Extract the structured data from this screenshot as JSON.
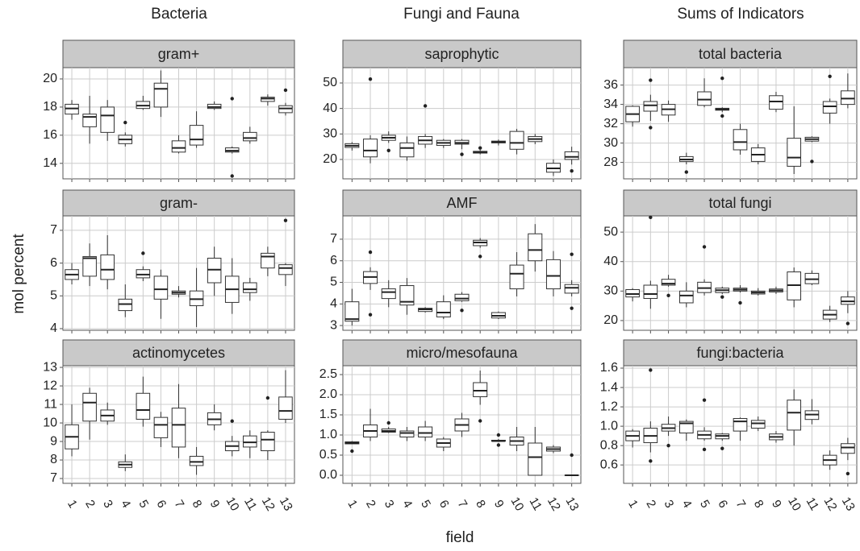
{
  "column_titles": [
    "Bacteria",
    "Fungi and Fauna",
    "Sums of Indicators"
  ],
  "ylabel": "mol percent",
  "xlabel": "field",
  "categories": [
    "1",
    "2",
    "3",
    "4",
    "5",
    "6",
    "7",
    "8",
    "9",
    "10",
    "11",
    "12",
    "13"
  ],
  "chart_data": [
    {
      "type": "box",
      "title": "gram+",
      "ylim": [
        12.9,
        20.8
      ],
      "yticks": [
        14,
        16,
        18,
        20
      ],
      "boxes": [
        [
          17.1,
          17.5,
          17.9,
          18.2,
          18.5
        ],
        [
          15.4,
          16.6,
          17.3,
          17.5,
          18.8
        ],
        [
          15.6,
          16.2,
          17.4,
          18.0,
          18.5
        ],
        [
          15.2,
          15.4,
          15.7,
          16.0,
          16.2
        ],
        [
          17.8,
          17.9,
          18.1,
          18.4,
          18.8
        ],
        [
          17.3,
          18.0,
          19.3,
          19.7,
          20.6
        ],
        [
          14.7,
          14.8,
          15.1,
          15.6,
          16.0
        ],
        [
          15.1,
          15.3,
          15.7,
          16.7,
          17.7
        ],
        [
          17.8,
          17.9,
          18.0,
          18.2,
          18.4
        ],
        [
          14.7,
          14.8,
          14.9,
          15.1,
          15.2
        ],
        [
          15.4,
          15.6,
          15.8,
          16.2,
          16.6
        ],
        [
          18.1,
          18.4,
          18.6,
          18.7,
          18.9
        ],
        [
          17.4,
          17.6,
          17.9,
          18.1,
          18.3
        ]
      ],
      "outliers": [
        [],
        [],
        [],
        [
          16.9
        ],
        [],
        [],
        [],
        [],
        [],
        [
          18.6,
          13.1
        ],
        [],
        [],
        [
          19.2
        ]
      ]
    },
    {
      "type": "box",
      "title": "saprophytic",
      "ylim": [
        12.4,
        56
      ],
      "yticks": [
        20,
        30,
        40,
        50
      ],
      "boxes": [
        [
          23.5,
          24.7,
          25.4,
          26.2,
          26.8
        ],
        [
          18.5,
          21,
          23.5,
          28,
          29.5
        ],
        [
          26.5,
          27.5,
          28.5,
          29.5,
          31
        ],
        [
          19.5,
          21,
          24.5,
          26.5,
          29
        ],
        [
          24.5,
          26,
          27.5,
          29,
          30
        ],
        [
          24.5,
          25.5,
          26.5,
          27.5,
          28
        ],
        [
          24,
          26,
          26.5,
          27.5,
          28
        ],
        [
          22,
          22.5,
          22.8,
          23.2,
          23.8
        ],
        [
          25.5,
          26.5,
          26.8,
          27.2,
          27.8
        ],
        [
          22,
          24,
          26.5,
          31,
          32
        ],
        [
          26,
          27,
          28,
          29,
          30
        ],
        [
          13.5,
          15,
          16.5,
          18.5,
          20
        ],
        [
          18,
          20,
          21,
          23,
          25
        ]
      ],
      "outliers": [
        [],
        [
          51.5
        ],
        [
          23.5
        ],
        [],
        [
          41
        ],
        [],
        [
          22
        ],
        [
          24.5
        ],
        [],
        [],
        [],
        [],
        [
          15.5
        ]
      ]
    },
    {
      "type": "box",
      "title": "total bacteria",
      "ylim": [
        26.3,
        37.8
      ],
      "yticks": [
        28,
        30,
        32,
        34,
        36
      ],
      "boxes": [
        [
          31.7,
          32.2,
          33.0,
          33.8,
          33.9
        ],
        [
          32.3,
          33.3,
          33.9,
          34.3,
          35.0
        ],
        [
          32.2,
          32.9,
          33.5,
          34.0,
          34.4
        ],
        [
          27.8,
          28.1,
          28.3,
          28.6,
          29.0
        ],
        [
          33.7,
          33.9,
          34.5,
          35.3,
          36.7
        ],
        [
          33.2,
          33.4,
          33.5,
          33.6,
          33.7
        ],
        [
          28.8,
          29.3,
          30.1,
          31.4,
          32.0
        ],
        [
          27.8,
          28.1,
          28.8,
          29.5,
          29.9
        ],
        [
          33.2,
          33.5,
          34.3,
          34.9,
          35.3
        ],
        [
          26.8,
          27.6,
          28.5,
          30.5,
          33.8
        ],
        [
          30.1,
          30.2,
          30.4,
          30.6,
          30.7
        ],
        [
          32.0,
          33.1,
          33.8,
          34.3,
          34.6
        ],
        [
          33.6,
          34.0,
          34.6,
          35.4,
          37.2
        ]
      ],
      "outliers": [
        [],
        [
          36.5,
          31.6
        ],
        [],
        [
          27.0
        ],
        [],
        [
          36.7,
          32.8
        ],
        [],
        [],
        [],
        [],
        [
          28.1
        ],
        [
          36.9
        ],
        []
      ]
    },
    {
      "type": "box",
      "title": "gram-",
      "ylim": [
        3.95,
        7.44
      ],
      "yticks": [
        4,
        5,
        6,
        7
      ],
      "boxes": [
        [
          5.35,
          5.5,
          5.65,
          5.8,
          6.0
        ],
        [
          5.3,
          5.6,
          6.15,
          6.2,
          6.6
        ],
        [
          5.2,
          5.5,
          5.8,
          6.25,
          6.85
        ],
        [
          4.35,
          4.55,
          4.75,
          4.9,
          5.35
        ],
        [
          5.45,
          5.55,
          5.65,
          5.8,
          5.9
        ],
        [
          4.3,
          4.9,
          5.2,
          5.6,
          5.8
        ],
        [
          4.95,
          5.05,
          5.1,
          5.15,
          5.3
        ],
        [
          4.05,
          4.7,
          4.9,
          5.15,
          5.85
        ],
        [
          5.0,
          5.4,
          5.8,
          6.15,
          6.5
        ],
        [
          4.45,
          4.8,
          5.2,
          5.6,
          6.15
        ],
        [
          4.85,
          5.1,
          5.2,
          5.4,
          5.55
        ],
        [
          5.6,
          5.85,
          6.2,
          6.3,
          6.5
        ],
        [
          5.3,
          5.65,
          5.85,
          5.95,
          6.0
        ]
      ],
      "outliers": [
        [],
        [],
        [],
        [],
        [
          6.3
        ],
        [],
        [],
        [],
        [],
        [],
        [],
        [],
        [
          7.3
        ]
      ]
    },
    {
      "type": "box",
      "title": "AMF",
      "ylim": [
        2.78,
        8.08
      ],
      "yticks": [
        3,
        4,
        5,
        6,
        7
      ],
      "boxes": [
        [
          3.0,
          3.2,
          3.3,
          4.1,
          4.7
        ],
        [
          4.65,
          4.95,
          5.25,
          5.5,
          5.7
        ],
        [
          3.85,
          4.25,
          4.55,
          4.7,
          5.1
        ],
        [
          3.5,
          3.95,
          4.1,
          4.85,
          5.2
        ],
        [
          3.6,
          3.65,
          3.75,
          3.8,
          3.85
        ],
        [
          3.3,
          3.4,
          3.6,
          4.1,
          4.4
        ],
        [
          4.1,
          4.15,
          4.25,
          4.45,
          4.55
        ],
        [
          6.6,
          6.7,
          6.85,
          6.95,
          7.05
        ],
        [
          3.3,
          3.35,
          3.45,
          3.6,
          3.65
        ],
        [
          4.35,
          4.7,
          5.4,
          5.8,
          6.4
        ],
        [
          5.5,
          6.0,
          6.5,
          7.25,
          7.7
        ],
        [
          4.35,
          4.7,
          5.3,
          6.05,
          6.45
        ],
        [
          4.35,
          4.5,
          4.75,
          4.9,
          5.1
        ]
      ],
      "outliers": [
        [],
        [
          6.4,
          3.5
        ],
        [],
        [],
        [],
        [],
        [
          3.7
        ],
        [
          6.2
        ],
        [],
        [],
        [],
        [],
        [
          6.3,
          3.8
        ]
      ]
    },
    {
      "type": "box",
      "title": "total fungi",
      "ylim": [
        16.7,
        55.5
      ],
      "yticks": [
        20,
        30,
        40,
        50
      ],
      "boxes": [
        [
          26.5,
          28,
          29,
          30.5,
          31
        ],
        [
          24,
          27.5,
          29,
          32,
          33.5
        ],
        [
          31.5,
          32,
          32.5,
          34,
          35.5
        ],
        [
          24.5,
          26,
          28.5,
          30,
          33
        ],
        [
          28.5,
          29.5,
          31,
          33,
          34
        ],
        [
          29,
          29.5,
          30.3,
          31,
          31.5
        ],
        [
          29.5,
          30,
          30.5,
          31,
          32
        ],
        [
          28.5,
          29,
          29.5,
          30,
          31
        ],
        [
          29,
          29.7,
          30.2,
          30.7,
          31.5
        ],
        [
          24.5,
          27,
          32,
          36.5,
          38
        ],
        [
          32,
          32.5,
          34,
          36,
          37
        ],
        [
          19.5,
          20.5,
          22,
          23.5,
          25
        ],
        [
          22.5,
          25.5,
          26.5,
          28,
          30
        ]
      ],
      "outliers": [
        [],
        [
          55
        ],
        [
          28.5
        ],
        [],
        [
          45
        ],
        [
          28
        ],
        [
          26
        ],
        [],
        [],
        [],
        [],
        [],
        [
          19
        ]
      ]
    },
    {
      "type": "box",
      "title": "actinomycetes",
      "ylim": [
        6.74,
        13.09
      ],
      "yticks": [
        7,
        8,
        9,
        10,
        11,
        12,
        13
      ],
      "boxes": [
        [
          8.2,
          8.6,
          9.25,
          9.9,
          11.0
        ],
        [
          9.1,
          10.1,
          11.1,
          11.6,
          11.9
        ],
        [
          9.9,
          10.1,
          10.4,
          10.7,
          11.1
        ],
        [
          7.4,
          7.6,
          7.75,
          7.9,
          8.3
        ],
        [
          9.8,
          10.2,
          10.7,
          11.6,
          12.5
        ],
        [
          8.7,
          9.2,
          9.9,
          10.3,
          10.6
        ],
        [
          8.1,
          8.7,
          9.9,
          10.8,
          12.1
        ],
        [
          7.2,
          7.7,
          7.9,
          8.2,
          8.7
        ],
        [
          9.6,
          9.9,
          10.2,
          10.55,
          11.0
        ],
        [
          8.2,
          8.5,
          8.75,
          9.0,
          9.3
        ],
        [
          8.1,
          8.7,
          8.95,
          9.3,
          9.6
        ],
        [
          8.0,
          8.5,
          9.1,
          9.5,
          9.6
        ],
        [
          10.0,
          10.2,
          10.65,
          11.4,
          12.85
        ]
      ],
      "outliers": [
        [],
        [],
        [],
        [],
        [],
        [],
        [],
        [],
        [],
        [
          10.1
        ],
        [],
        [
          11.35
        ],
        []
      ]
    },
    {
      "type": "box",
      "title": "micro/mesofauna",
      "ylim": [
        -0.2,
        2.72
      ],
      "yticks": [
        {
          "value": 0,
          "label": "0.0"
        },
        {
          "value": 0.5,
          "label": "0.5"
        },
        {
          "value": 1,
          "label": "1.0"
        },
        {
          "value": 1.5,
          "label": "1.5"
        },
        {
          "value": 2,
          "label": "2.0"
        },
        {
          "value": 2.5,
          "label": "2.5"
        }
      ],
      "boxes": [
        [
          0.77,
          0.78,
          0.8,
          0.83,
          0.85
        ],
        [
          0.85,
          0.95,
          1.1,
          1.25,
          1.65
        ],
        [
          1.05,
          1.07,
          1.1,
          1.15,
          1.2
        ],
        [
          0.85,
          0.95,
          1.05,
          1.1,
          1.2
        ],
        [
          0.85,
          0.95,
          1.05,
          1.2,
          1.35
        ],
        [
          0.6,
          0.7,
          0.8,
          0.9,
          0.95
        ],
        [
          0.95,
          1.1,
          1.25,
          1.4,
          1.55
        ],
        [
          1.75,
          1.95,
          2.1,
          2.3,
          2.6
        ],
        [
          0.85,
          0.85,
          0.85,
          0.87,
          0.9
        ],
        [
          0.6,
          0.75,
          0.85,
          0.95,
          1.2
        ],
        [
          0,
          0,
          0.45,
          0.8,
          1.2
        ],
        [
          0.55,
          0.6,
          0.65,
          0.7,
          0.75
        ],
        [
          0,
          0,
          0,
          0,
          0
        ]
      ],
      "outliers": [
        [
          0.6
        ],
        [],
        [
          1.3
        ],
        [],
        [],
        [],
        [],
        [
          1.35
        ],
        [
          1.0,
          0.75
        ],
        [],
        [],
        [],
        [
          0.5
        ]
      ]
    },
    {
      "type": "box",
      "title": "fungi:bacteria",
      "ylim": [
        0.41,
        1.625
      ],
      "yticks": [
        0.6,
        0.8,
        {
          "value": 1,
          "label": "1.0"
        },
        1.2,
        1.4,
        1.6
      ],
      "boxes": [
        [
          0.78,
          0.85,
          0.9,
          0.95,
          0.97
        ],
        [
          0.73,
          0.83,
          0.9,
          0.98,
          1.05
        ],
        [
          0.9,
          0.95,
          0.98,
          1.02,
          1.1
        ],
        [
          0.85,
          0.93,
          1.03,
          1.05,
          1.07
        ],
        [
          0.85,
          0.87,
          0.91,
          0.95,
          0.99
        ],
        [
          0.85,
          0.87,
          0.9,
          0.92,
          0.93
        ],
        [
          0.85,
          0.95,
          1.05,
          1.08,
          1.09
        ],
        [
          0.95,
          0.98,
          1.03,
          1.06,
          1.1
        ],
        [
          0.83,
          0.86,
          0.89,
          0.92,
          0.95
        ],
        [
          0.8,
          0.96,
          1.14,
          1.27,
          1.38
        ],
        [
          1.02,
          1.07,
          1.12,
          1.16,
          1.28
        ],
        [
          0.55,
          0.6,
          0.65,
          0.7,
          0.75
        ],
        [
          0.65,
          0.72,
          0.78,
          0.82,
          0.88
        ]
      ],
      "outliers": [
        [],
        [
          1.58,
          0.64
        ],
        [
          0.8
        ],
        [],
        [
          1.27,
          0.76
        ],
        [
          0.77
        ],
        [],
        [],
        [],
        [],
        [],
        [],
        [
          0.51
        ]
      ]
    }
  ]
}
